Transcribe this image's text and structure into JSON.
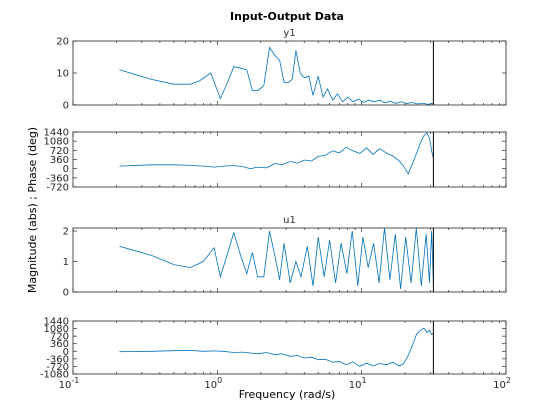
{
  "chart_data": {
    "type": "line",
    "title": "Input-Output Data",
    "xlabel": "Frequency  (rad/s)",
    "ylabel": "Magnitude (abs) ; Phase (deg)",
    "x_scale": "log",
    "xlim": [
      0.1,
      100
    ],
    "x_ticks": [
      0.1,
      1,
      10,
      100
    ],
    "x_tick_labels": [
      {
        "base": "10",
        "exp": "-1"
      },
      {
        "base": "10",
        "exp": "0"
      },
      {
        "base": "10",
        "exp": "1"
      },
      {
        "base": "10",
        "exp": "2"
      }
    ],
    "nyquist_marker": 31.4,
    "line_color": "#0072bd",
    "marker_color": "#000000",
    "grid": false,
    "panels": [
      {
        "id": "y1-magnitude",
        "subtitle": "y1",
        "ylim": [
          0,
          20
        ],
        "y_ticks": [
          0,
          10,
          20
        ],
        "y_tick_labels": [
          "0",
          "10",
          "20"
        ],
        "x": [
          0.21,
          0.35,
          0.5,
          0.65,
          0.75,
          0.9,
          1.05,
          1.2,
          1.3,
          1.45,
          1.6,
          1.75,
          1.9,
          2.1,
          2.3,
          2.5,
          2.7,
          2.9,
          3.1,
          3.3,
          3.5,
          3.75,
          4.0,
          4.3,
          4.6,
          5.0,
          5.4,
          5.8,
          6.3,
          6.8,
          7.4,
          8.0,
          8.7,
          9.5,
          10.3,
          11.2,
          12.2,
          13.3,
          14.5,
          15.8,
          17.2,
          18.8,
          20.5,
          22.3,
          24.3,
          26.5,
          28.8,
          30.5,
          31.4
        ],
        "y": [
          11,
          8,
          6.5,
          6.5,
          7.5,
          10,
          2,
          8,
          12,
          11.5,
          11,
          4.5,
          4.5,
          6,
          18,
          15.5,
          14,
          7,
          7,
          8,
          17,
          10,
          8.5,
          9,
          3,
          9,
          2.5,
          5,
          1.5,
          3.5,
          1,
          2.5,
          1,
          1.8,
          0.8,
          1.5,
          1,
          1.5,
          0.7,
          1.2,
          0.5,
          1,
          0.4,
          0.8,
          0.3,
          0.6,
          0.2,
          0.5,
          0.3
        ]
      },
      {
        "id": "y1-phase",
        "subtitle": "",
        "ylim": [
          -720,
          1440
        ],
        "y_ticks": [
          -720,
          -360,
          0,
          360,
          720,
          1080,
          1440
        ],
        "y_tick_labels": [
          "-720",
          "-360",
          "0",
          "360",
          "720",
          "1080",
          "1440"
        ],
        "x": [
          0.21,
          0.35,
          0.5,
          0.65,
          0.8,
          0.95,
          1.1,
          1.3,
          1.5,
          1.7,
          1.9,
          2.2,
          2.5,
          2.8,
          3.2,
          3.6,
          4.0,
          4.5,
          5.0,
          5.6,
          6.3,
          7.0,
          7.8,
          8.7,
          9.7,
          10.8,
          12.0,
          13.3,
          14.8,
          16.4,
          18.2,
          19.5,
          21.0,
          22.5,
          24.0,
          25.5,
          27.0,
          28.3,
          29.5,
          30.5,
          31.4
        ],
        "y": [
          100,
          150,
          150,
          130,
          100,
          60,
          100,
          120,
          80,
          0,
          60,
          30,
          200,
          160,
          280,
          220,
          340,
          300,
          480,
          520,
          700,
          620,
          840,
          700,
          600,
          820,
          560,
          780,
          620,
          500,
          300,
          100,
          -200,
          200,
          600,
          1000,
          1300,
          1400,
          1200,
          700,
          400
        ]
      },
      {
        "id": "u1-magnitude",
        "subtitle": "u1",
        "ylim": [
          0,
          2.1
        ],
        "y_ticks": [
          0,
          1,
          2
        ],
        "y_tick_labels": [
          "0",
          "1",
          "2"
        ],
        "x": [
          0.21,
          0.35,
          0.5,
          0.65,
          0.8,
          0.95,
          1.05,
          1.2,
          1.3,
          1.45,
          1.6,
          1.75,
          1.9,
          2.1,
          2.3,
          2.5,
          2.7,
          2.9,
          3.2,
          3.5,
          3.8,
          4.2,
          4.6,
          5.0,
          5.5,
          6.0,
          6.6,
          7.2,
          7.9,
          8.6,
          9.4,
          10.2,
          11.1,
          12.1,
          13.2,
          14.4,
          15.7,
          17.1,
          18.6,
          20.2,
          22.0,
          23.9,
          25.9,
          28.0,
          29.5,
          30.5,
          31.4
        ],
        "y": [
          1.5,
          1.2,
          0.9,
          0.8,
          1.0,
          1.45,
          0.5,
          1.4,
          1.95,
          1.2,
          0.6,
          1.3,
          0.5,
          0.5,
          2.0,
          1.2,
          0.4,
          1.6,
          0.3,
          1.0,
          0.5,
          1.5,
          0.2,
          1.8,
          0.5,
          1.7,
          0.3,
          1.6,
          0.6,
          2.0,
          0.2,
          1.8,
          0.8,
          1.6,
          0.3,
          2.1,
          0.4,
          1.9,
          0.1,
          1.8,
          0.3,
          2.1,
          0.2,
          1.9,
          0.3,
          2.0,
          0.3
        ]
      },
      {
        "id": "u1-phase",
        "subtitle": "",
        "ylim": [
          -1080,
          1440
        ],
        "y_ticks": [
          -1080,
          -720,
          -360,
          0,
          360,
          720,
          1080,
          1440
        ],
        "y_tick_labels": [
          "-1080",
          "-720",
          "-360",
          "0",
          "360",
          "720",
          "1080",
          "1440"
        ],
        "x": [
          0.21,
          0.35,
          0.5,
          0.65,
          0.8,
          0.95,
          1.1,
          1.3,
          1.5,
          1.7,
          1.9,
          2.2,
          2.5,
          2.8,
          3.2,
          3.6,
          4.0,
          4.5,
          5.0,
          5.6,
          6.3,
          7.0,
          7.8,
          8.7,
          9.7,
          10.8,
          12.0,
          13.3,
          14.8,
          16.4,
          18.2,
          19.5,
          21.0,
          22.5,
          24.0,
          25.5,
          27.0,
          28.3,
          29.5,
          30.5,
          31.4
        ],
        "y": [
          -20,
          0,
          30,
          40,
          0,
          20,
          0,
          -60,
          -40,
          -80,
          -120,
          -60,
          -160,
          -120,
          -240,
          -200,
          -320,
          -280,
          -400,
          -380,
          -520,
          -480,
          -640,
          -500,
          -720,
          -560,
          -700,
          -580,
          -640,
          -520,
          -700,
          -600,
          -200,
          300,
          800,
          1000,
          1100,
          900,
          1000,
          800,
          850
        ]
      }
    ]
  }
}
